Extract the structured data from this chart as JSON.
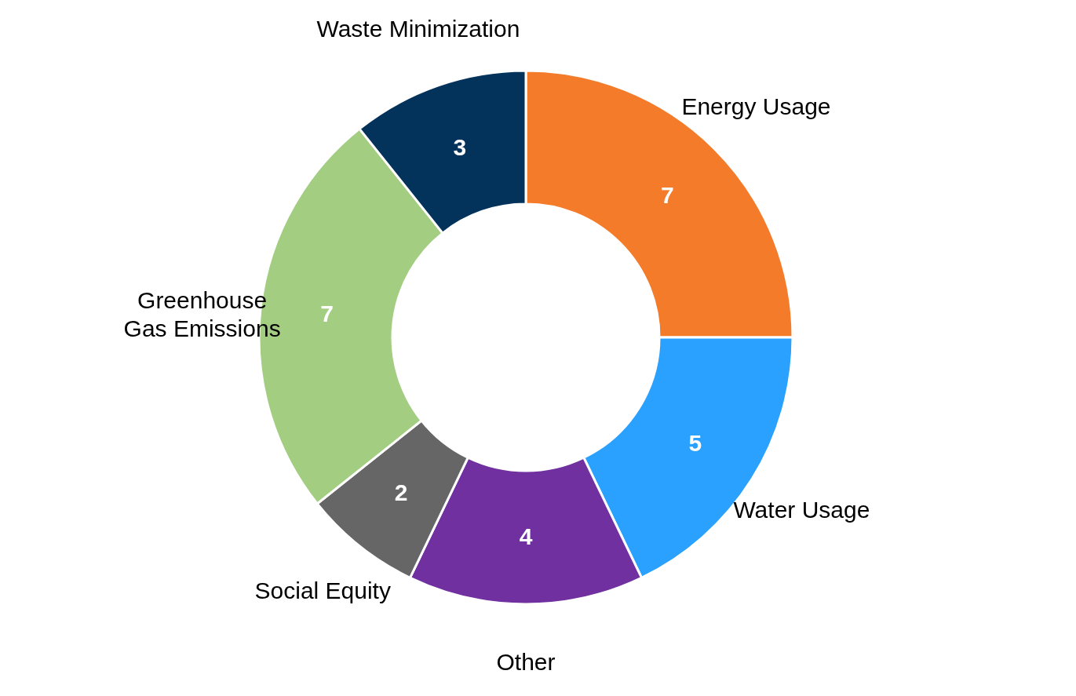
{
  "chart_data": {
    "type": "donut",
    "categories": [
      "Energy Usage",
      "Water Usage",
      "Other",
      "Social Equity",
      "Greenhouse Gas Emissions",
      "Waste Minimization"
    ],
    "values": [
      7,
      5,
      4,
      2,
      7,
      3
    ],
    "colors": [
      "#f47b2a",
      "#2aa1fe",
      "#7030a0",
      "#666666",
      "#a3cd80",
      "#03325b"
    ],
    "data_labels": true,
    "legend": false
  }
}
